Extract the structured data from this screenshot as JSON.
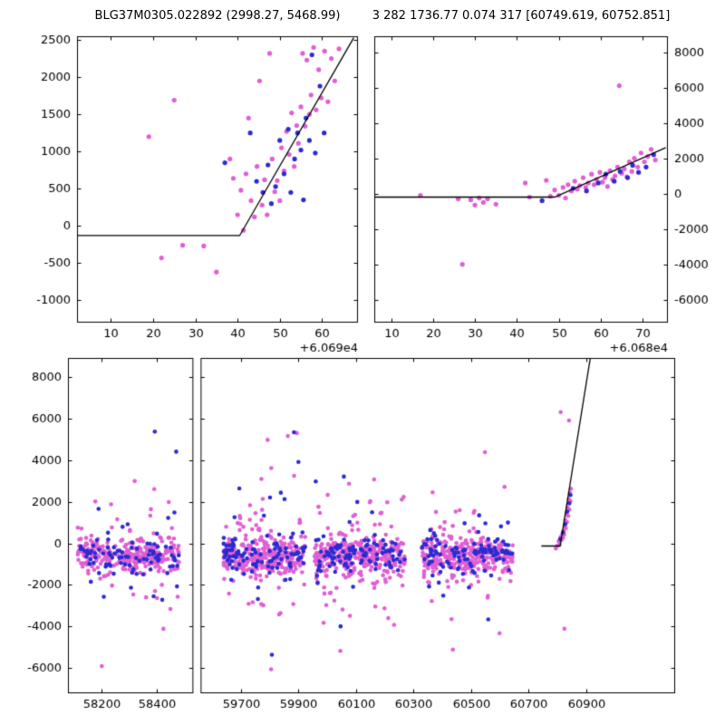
{
  "titles": {
    "left": "BLG37M0305.022892 (2998.27, 5468.99)",
    "right": "3 282 1736.77 0.074 317 [60749.619, 60752.851]"
  },
  "colors": {
    "magenta": "#E05FD3",
    "blue": "#2B2BD0",
    "line": "#000000",
    "axis": "#000000",
    "text": "#000000",
    "background": "#ffffff"
  },
  "chart_data": [
    {
      "id": "panel-top-left",
      "type": "scatter",
      "xlim": [
        60692,
        60758.5
      ],
      "ylim": [
        -1300,
        2550
      ],
      "xticks": [
        60700,
        60710,
        60720,
        60730,
        60740,
        60750
      ],
      "xtick_labels": [
        "10",
        "20",
        "30",
        "40",
        "50",
        "60"
      ],
      "x_offset_label": "+6.069e4",
      "yticks": [
        -1000,
        -500,
        0,
        500,
        1000,
        1500,
        2000,
        2500
      ],
      "y_side": "left",
      "grid": false,
      "line": [
        [
          60692,
          -130
        ],
        [
          60730.5,
          -130
        ],
        [
          60757.5,
          2530
        ]
      ],
      "series": [
        {
          "name": "survey-magenta",
          "color_key": "magenta",
          "points": [
            [
              60709,
              1200
            ],
            [
              60712,
              -430
            ],
            [
              60715,
              1690
            ],
            [
              60717,
              -260
            ],
            [
              60722,
              -270
            ],
            [
              60725,
              -620
            ],
            [
              60728.2,
              900
            ],
            [
              60729,
              640
            ],
            [
              60730,
              150
            ],
            [
              60730.8,
              480
            ],
            [
              60731.4,
              -60
            ],
            [
              60732,
              700
            ],
            [
              60732.6,
              1450
            ],
            [
              60733.2,
              340
            ],
            [
              60734,
              120
            ],
            [
              60734.6,
              800
            ],
            [
              60735.2,
              1950
            ],
            [
              60735.8,
              280
            ],
            [
              60736.4,
              620
            ],
            [
              60737,
              150
            ],
            [
              60737.6,
              2320
            ],
            [
              60738.2,
              900
            ],
            [
              60738.8,
              460
            ],
            [
              60739.4,
              610
            ],
            [
              60740,
              340
            ],
            [
              60740.4,
              1050
            ],
            [
              60741,
              740
            ],
            [
              60741.6,
              1270
            ],
            [
              60742.2,
              960
            ],
            [
              60742.8,
              1520
            ],
            [
              60743.4,
              800
            ],
            [
              60744,
              1350
            ],
            [
              60744.4,
              1110
            ],
            [
              60745,
              1600
            ],
            [
              60745.4,
              2320
            ],
            [
              60746,
              1340
            ],
            [
              60746.4,
              2230
            ],
            [
              60747,
              1500
            ],
            [
              60747.4,
              1760
            ],
            [
              60748,
              2400
            ],
            [
              60748.6,
              1560
            ],
            [
              60749.2,
              2100
            ],
            [
              60749.8,
              1720
            ],
            [
              60750.6,
              2350
            ],
            [
              60751.4,
              1670
            ],
            [
              60752.2,
              2250
            ],
            [
              60753,
              1950
            ],
            [
              60754,
              2380
            ]
          ]
        },
        {
          "name": "followup-blue",
          "color_key": "blue",
          "points": [
            [
              60727,
              850
            ],
            [
              60733,
              1250
            ],
            [
              60734.5,
              600
            ],
            [
              60736,
              450
            ],
            [
              60737.2,
              820
            ],
            [
              60738,
              300
            ],
            [
              60739,
              530
            ],
            [
              60740,
              1150
            ],
            [
              60741,
              700
            ],
            [
              60742,
              1300
            ],
            [
              60742.6,
              450
            ],
            [
              60743.5,
              900
            ],
            [
              60744.2,
              1250
            ],
            [
              60745,
              1020
            ],
            [
              60745.6,
              350
            ],
            [
              60746.2,
              1450
            ],
            [
              60747,
              1150
            ],
            [
              60747.6,
              2300
            ],
            [
              60748.4,
              980
            ],
            [
              60749.5,
              1880
            ],
            [
              60750.5,
              1250
            ]
          ]
        }
      ]
    },
    {
      "id": "panel-top-right",
      "type": "scatter",
      "xlim": [
        60686,
        60756
      ],
      "ylim": [
        -7300,
        8900
      ],
      "xticks": [
        60690,
        60700,
        60710,
        60720,
        60730,
        60740,
        60750
      ],
      "xtick_labels": [
        "10",
        "20",
        "30",
        "40",
        "50",
        "60",
        "70"
      ],
      "x_offset_label": "+6.068e4",
      "yticks": [
        -6000,
        -4000,
        -2000,
        0,
        2000,
        4000,
        6000,
        8000
      ],
      "y_side": "right",
      "grid": false,
      "line": [
        [
          60686,
          -200
        ],
        [
          60729,
          -200
        ],
        [
          60755.5,
          2600
        ]
      ],
      "series": [
        {
          "name": "survey-magenta",
          "color_key": "magenta",
          "points": [
            [
              60697,
              -100
            ],
            [
              60706,
              -300
            ],
            [
              60707,
              -4000
            ],
            [
              60709,
              -350
            ],
            [
              60710,
              -650
            ],
            [
              60711,
              -250
            ],
            [
              60712,
              -500
            ],
            [
              60713,
              -300
            ],
            [
              60715,
              -600
            ],
            [
              60722,
              600
            ],
            [
              60723,
              -200
            ],
            [
              60727,
              750
            ],
            [
              60728,
              -150
            ],
            [
              60729,
              200
            ],
            [
              60730,
              -100
            ],
            [
              60731,
              350
            ],
            [
              60731.6,
              -250
            ],
            [
              60732.2,
              500
            ],
            [
              60733,
              150
            ],
            [
              60733.8,
              700
            ],
            [
              60734.4,
              250
            ],
            [
              60735,
              450
            ],
            [
              60735.8,
              900
            ],
            [
              60736.4,
              350
            ],
            [
              60737,
              600
            ],
            [
              60737.8,
              1100
            ],
            [
              60738.4,
              500
            ],
            [
              60739,
              800
            ],
            [
              60739.8,
              1200
            ],
            [
              60740.4,
              650
            ],
            [
              60741,
              900
            ],
            [
              60741.6,
              400
            ],
            [
              60742.2,
              1300
            ],
            [
              60742.8,
              800
            ],
            [
              60743.4,
              1000
            ],
            [
              60744,
              1500
            ],
            [
              60744.4,
              6100
            ],
            [
              60745,
              1150
            ],
            [
              60745.6,
              1400
            ],
            [
              60746.2,
              950
            ],
            [
              60746.8,
              1800
            ],
            [
              60747.4,
              1250
            ],
            [
              60748,
              2000
            ],
            [
              60748.8,
              1500
            ],
            [
              60749.6,
              2300
            ],
            [
              60750.4,
              1800
            ],
            [
              60751.2,
              2100
            ],
            [
              60752,
              2500
            ],
            [
              60753,
              1900
            ]
          ]
        },
        {
          "name": "followup-blue",
          "color_key": "blue",
          "points": [
            [
              60726,
              -400
            ],
            [
              60733.4,
              300
            ],
            [
              60736.6,
              150
            ],
            [
              60739.4,
              600
            ],
            [
              60741.2,
              1100
            ],
            [
              60743.2,
              700
            ],
            [
              60744.6,
              1250
            ],
            [
              60746.4,
              900
            ],
            [
              60747.6,
              1600
            ],
            [
              60749,
              1200
            ],
            [
              60750.8,
              1500
            ],
            [
              60752.6,
              2200
            ]
          ]
        }
      ]
    },
    {
      "id": "panel-bottom",
      "type": "scatter-broken-x",
      "ylim": [
        -7200,
        8900
      ],
      "yticks": [
        -6000,
        -4000,
        -2000,
        0,
        2000,
        4000,
        6000,
        8000
      ],
      "y_side": "left",
      "grid": false,
      "segments": [
        {
          "xlim": [
            58080,
            58530
          ],
          "xticks": [
            58200,
            58400
          ],
          "width_frac": 0.209
        },
        {
          "xlim": [
            59560,
            61210
          ],
          "xticks": [
            59700,
            59900,
            60100,
            60300,
            60500,
            60700,
            60900
          ],
          "width_frac": 0.791
        }
      ],
      "line": [
        [
          60745,
          -130
        ],
        [
          60810,
          -130
        ],
        [
          60915,
          8900
        ]
      ],
      "seed": 7,
      "clusters": [
        {
          "x0": 58115,
          "x1": 58480,
          "n_magenta": 300,
          "n_blue": 95,
          "center": -620,
          "sigma": 420,
          "mid_frac": 0.17,
          "mid_center": -250,
          "mid_sigma": 1500,
          "ext_frac": 0.016,
          "ext_lo": -6200,
          "ext_hi": 6300
        },
        {
          "x0": 59640,
          "x1": 59925,
          "n_magenta": 330,
          "n_blue": 110,
          "center": -620,
          "sigma": 430,
          "mid_frac": 0.18,
          "mid_center": -250,
          "mid_sigma": 1600,
          "ext_frac": 0.02,
          "ext_lo": -6900,
          "ext_hi": 8300
        },
        {
          "x0": 59955,
          "x1": 60270,
          "n_magenta": 330,
          "n_blue": 110,
          "center": -600,
          "sigma": 430,
          "mid_frac": 0.18,
          "mid_center": -250,
          "mid_sigma": 1550,
          "ext_frac": 0.018,
          "ext_lo": -6600,
          "ext_hi": 5600
        },
        {
          "x0": 60330,
          "x1": 60645,
          "n_magenta": 320,
          "n_blue": 110,
          "center": -600,
          "sigma": 420,
          "mid_frac": 0.18,
          "mid_center": -250,
          "mid_sigma": 1500,
          "ext_frac": 0.018,
          "ext_lo": -6500,
          "ext_hi": 5400
        }
      ],
      "event_points": {
        "magenta": [
          [
            60795,
            -250
          ],
          [
            60800,
            -120
          ],
          [
            60805,
            100
          ],
          [
            60808,
            -60
          ],
          [
            60812,
            300
          ],
          [
            60815,
            160
          ],
          [
            60818,
            450
          ],
          [
            60820,
            260
          ],
          [
            60822,
            600
          ],
          [
            60824,
            420
          ],
          [
            60826,
            820
          ],
          [
            60828,
            1120
          ],
          [
            60830,
            720
          ],
          [
            60832,
            1400
          ],
          [
            60834,
            1020
          ],
          [
            60836,
            1720
          ],
          [
            60838,
            1320
          ],
          [
            60840,
            2120
          ],
          [
            60842,
            1620
          ],
          [
            60844,
            2420
          ],
          [
            60846,
            2020
          ],
          [
            60848,
            2620
          ],
          [
            60841,
            5900
          ],
          [
            60825,
            -4100
          ],
          [
            60812,
            6300
          ]
        ],
        "blue": [
          [
            60810,
            210
          ],
          [
            60820,
            520
          ],
          [
            60828,
            920
          ],
          [
            60835,
            1520
          ],
          [
            60842,
            1920
          ],
          [
            60846,
            2320
          ]
        ]
      }
    }
  ]
}
